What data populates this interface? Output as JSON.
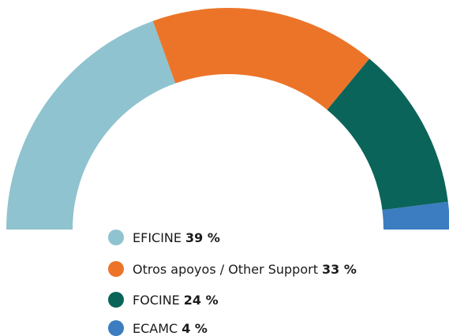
{
  "chart_data": {
    "type": "semi-donut",
    "categories": [
      "EFICINE",
      "Otros apoyos / Other Support",
      "FOCINE",
      "ECAMC"
    ],
    "values": [
      39,
      33,
      24,
      4
    ],
    "value_labels": [
      "39 %",
      "33 %",
      "24 %",
      "4 %"
    ],
    "colors": [
      "#8fc3cf",
      "#ec7429",
      "#0b6459",
      "#3b7dc0"
    ]
  }
}
